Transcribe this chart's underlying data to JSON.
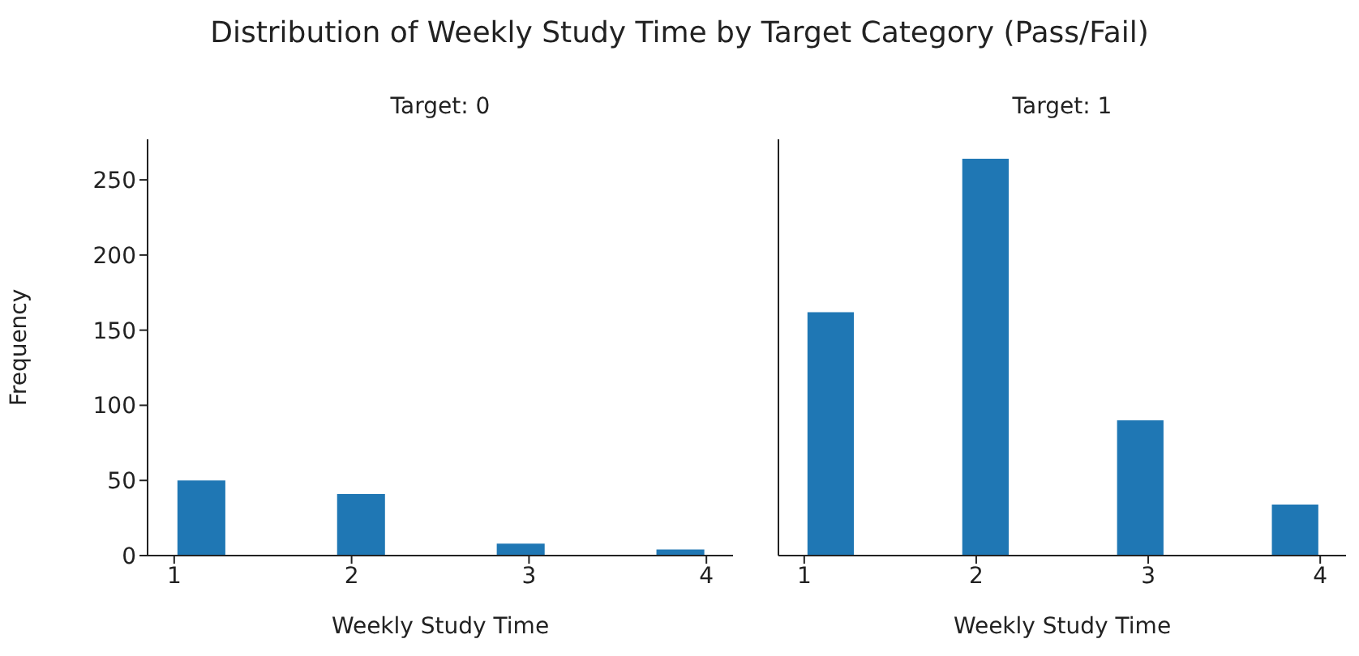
{
  "chart_data": [
    {
      "type": "histogram",
      "title": "Target: 0",
      "annotations": [
        "Distribution of Weekly Study Time by Target Category (Pass/Fail)"
      ],
      "xlabel": "Weekly Study Time",
      "ylabel": "Frequency",
      "color": "#1f77b4",
      "bins": [
        1,
        1.3,
        1.6,
        1.9,
        2.2,
        2.5,
        2.8,
        3.1,
        3.4,
        3.7,
        4
      ],
      "values": [
        50,
        0,
        0,
        41,
        0,
        0,
        8,
        0,
        0,
        4
      ],
      "xlim": [
        0.85,
        4.15
      ],
      "xticks": [
        1,
        2,
        3,
        4
      ],
      "ylim": [
        0,
        277
      ],
      "yticks": [
        0,
        50,
        100,
        150,
        200,
        250
      ]
    },
    {
      "type": "histogram",
      "title": "Target: 1",
      "xlabel": "Weekly Study Time",
      "color": "#1f77b4",
      "bins": [
        1,
        1.3,
        1.6,
        1.9,
        2.2,
        2.5,
        2.8,
        3.1,
        3.4,
        3.7,
        4
      ],
      "values": [
        162,
        0,
        0,
        264,
        0,
        0,
        90,
        0,
        0,
        34
      ],
      "xlim": [
        0.85,
        4.15
      ],
      "xticks": [
        1,
        2,
        3,
        4
      ],
      "ylim": [
        0,
        277
      ],
      "yticks": [
        0,
        50,
        100,
        150,
        200,
        250
      ],
      "tick_labels": "x"
    }
  ]
}
